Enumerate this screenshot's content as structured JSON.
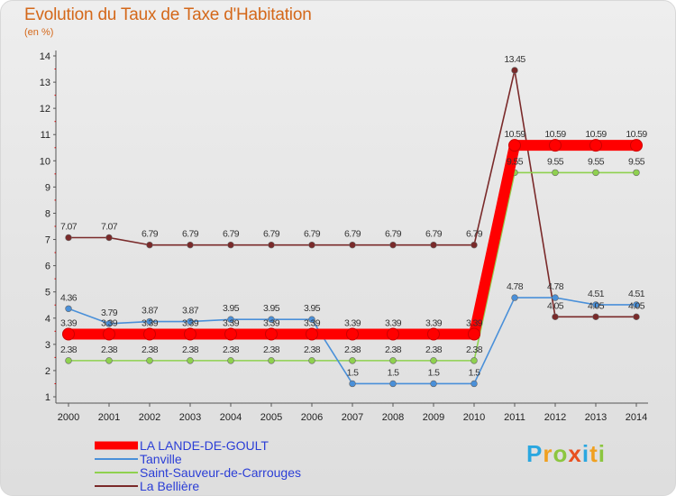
{
  "chart_data": {
    "type": "line",
    "title": "Evolution du Taux de Taxe d'Habitation",
    "subtitle": "(en %)",
    "xlabel": "",
    "ylabel": "",
    "x": [
      2000,
      2001,
      2002,
      2003,
      2004,
      2005,
      2006,
      2007,
      2008,
      2009,
      2010,
      2011,
      2012,
      2013,
      2014
    ],
    "ylim": [
      1,
      14
    ],
    "yticks": [
      1,
      2,
      3,
      4,
      5,
      6,
      7,
      8,
      9,
      10,
      11,
      12,
      13,
      14
    ],
    "grid": false,
    "legend_position": "bottom-left",
    "series": [
      {
        "name": "LA LANDE-DE-GOULT",
        "color": "#ff0000",
        "values": [
          3.39,
          3.39,
          3.39,
          3.39,
          3.39,
          3.39,
          3.39,
          3.39,
          3.39,
          3.39,
          3.39,
          10.59,
          10.59,
          10.59,
          10.59
        ],
        "labels": [
          "3.39",
          "3.39",
          "3.39",
          "3.39",
          "3.39",
          "3.39",
          "3.39",
          "3.39",
          "3.39",
          "3.39",
          "3.39",
          "10.59",
          "10.59",
          "10.59",
          "10.59"
        ]
      },
      {
        "name": "Tanville",
        "color": "#4a90d9",
        "values": [
          4.36,
          3.79,
          3.87,
          3.87,
          3.95,
          3.95,
          3.95,
          1.5,
          1.5,
          1.5,
          1.5,
          4.78,
          4.78,
          4.51,
          4.51
        ],
        "labels": [
          "4.36",
          "3.79",
          "3.87",
          "3.87",
          "3.95",
          "3.95",
          "3.95",
          "1.5",
          "1.5",
          "1.5",
          "1.5",
          "4.78",
          "4.78",
          "4.51",
          "4.51"
        ]
      },
      {
        "name": "Saint-Sauveur-de-Carrouges",
        "color": "#8fd14f",
        "values": [
          2.38,
          2.38,
          2.38,
          2.38,
          2.38,
          2.38,
          2.38,
          2.38,
          2.38,
          2.38,
          2.38,
          9.55,
          9.55,
          9.55,
          9.55
        ],
        "labels": [
          "2.38",
          "2.38",
          "2.38",
          "2.38",
          "2.38",
          "2.38",
          "2.38",
          "2.38",
          "2.38",
          "2.38",
          "2.38",
          "9.55",
          "9.55",
          "9.55",
          "9.55"
        ]
      },
      {
        "name": "La Bellière",
        "color": "#7a2a2a",
        "values": [
          7.07,
          7.07,
          6.79,
          6.79,
          6.79,
          6.79,
          6.79,
          6.79,
          6.79,
          6.79,
          6.79,
          13.45,
          4.05,
          4.05,
          4.05
        ],
        "labels": [
          "7.07",
          "7.07",
          "6.79",
          "6.79",
          "6.79",
          "6.79",
          "6.79",
          "6.79",
          "6.79",
          "6.79",
          "6.79",
          "13.45",
          "4.05",
          "4.05",
          "4.05"
        ]
      }
    ]
  },
  "logo": {
    "letters": [
      "P",
      "r",
      "o",
      "x",
      "i",
      "t",
      "i"
    ],
    "colors": [
      "#2aa7e0",
      "#f0a020",
      "#8cc63f",
      "#e85020",
      "#2aa7e0",
      "#f0a020",
      "#8cc63f"
    ]
  }
}
